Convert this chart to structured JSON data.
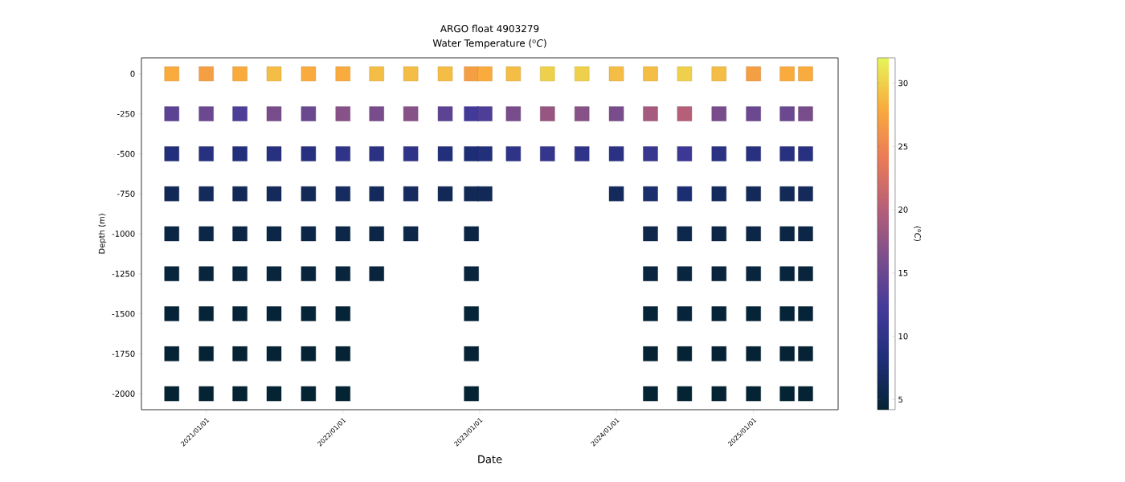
{
  "chart_data": {
    "type": "scatter",
    "title": "ARGO float 4903279",
    "subtitle": "Water Temperature ($^{o}$*C*)",
    "xlabel": "Date",
    "ylabel": "Depth (m)",
    "clabel": "($^{o}$*C*)",
    "xlim": [
      "2020-07-12",
      "2025-08-15"
    ],
    "xticks": [
      {
        "value": "2021-01-01",
        "label": "2021/01/01"
      },
      {
        "value": "2022-01-01",
        "label": "2022/01/01"
      },
      {
        "value": "2023-01-01",
        "label": "2023/01/01"
      },
      {
        "value": "2024-01-01",
        "label": "2024/01/01"
      },
      {
        "value": "2025-01-01",
        "label": "2025/01/01"
      }
    ],
    "ylim": [
      -2100,
      100
    ],
    "yticks": [
      0,
      -250,
      -500,
      -750,
      -1000,
      -1250,
      -1500,
      -1750,
      -2000
    ],
    "clim": [
      4.2,
      32
    ],
    "cticks": [
      5,
      10,
      15,
      20,
      25,
      30
    ],
    "marker": "square",
    "x": [
      "2020-10-01",
      "2020-10-01",
      "2020-10-01",
      "2020-10-01",
      "2020-10-01",
      "2020-10-01",
      "2020-10-01",
      "2020-10-01",
      "2020-10-01",
      "2021-01-01",
      "2021-01-01",
      "2021-01-01",
      "2021-01-01",
      "2021-01-01",
      "2021-01-01",
      "2021-01-01",
      "2021-01-01",
      "2021-01-01",
      "2021-04-01",
      "2021-04-01",
      "2021-04-01",
      "2021-04-01",
      "2021-04-01",
      "2021-04-01",
      "2021-04-01",
      "2021-04-01",
      "2021-04-01",
      "2021-07-01",
      "2021-07-01",
      "2021-07-01",
      "2021-07-01",
      "2021-07-01",
      "2021-07-01",
      "2021-07-01",
      "2021-07-01",
      "2021-07-01",
      "2021-10-01",
      "2021-10-01",
      "2021-10-01",
      "2021-10-01",
      "2021-10-01",
      "2021-10-01",
      "2021-10-01",
      "2021-10-01",
      "2021-10-01",
      "2022-01-01",
      "2022-01-01",
      "2022-01-01",
      "2022-01-01",
      "2022-01-01",
      "2022-01-01",
      "2022-01-01",
      "2022-01-01",
      "2022-01-01",
      "2022-04-01",
      "2022-04-01",
      "2022-04-01",
      "2022-04-01",
      "2022-04-01",
      "2022-04-01",
      "2022-07-01",
      "2022-07-01",
      "2022-07-01",
      "2022-07-01",
      "2022-07-01",
      "2022-10-01",
      "2022-10-01",
      "2022-10-01",
      "2022-10-01",
      "2022-12-10",
      "2022-12-10",
      "2022-12-10",
      "2022-12-10",
      "2022-12-10",
      "2022-12-10",
      "2022-12-10",
      "2022-12-10",
      "2022-12-10",
      "2023-01-15",
      "2023-01-15",
      "2023-01-15",
      "2023-01-15",
      "2023-04-01",
      "2023-04-01",
      "2023-04-01",
      "2023-07-01",
      "2023-07-01",
      "2023-07-01",
      "2023-10-01",
      "2023-10-01",
      "2023-10-01",
      "2024-01-01",
      "2024-01-01",
      "2024-01-01",
      "2024-01-01",
      "2024-04-01",
      "2024-04-01",
      "2024-04-01",
      "2024-04-01",
      "2024-04-01",
      "2024-04-01",
      "2024-04-01",
      "2024-04-01",
      "2024-04-01",
      "2024-07-01",
      "2024-07-01",
      "2024-07-01",
      "2024-07-01",
      "2024-07-01",
      "2024-07-01",
      "2024-07-01",
      "2024-07-01",
      "2024-07-01",
      "2024-10-01",
      "2024-10-01",
      "2024-10-01",
      "2024-10-01",
      "2024-10-01",
      "2024-10-01",
      "2024-10-01",
      "2024-10-01",
      "2024-10-01",
      "2025-01-01",
      "2025-01-01",
      "2025-01-01",
      "2025-01-01",
      "2025-01-01",
      "2025-01-01",
      "2025-01-01",
      "2025-01-01",
      "2025-01-01",
      "2025-04-01",
      "2025-04-01",
      "2025-04-01",
      "2025-04-01",
      "2025-04-01",
      "2025-04-01",
      "2025-04-01",
      "2025-04-01",
      "2025-04-01",
      "2025-05-20",
      "2025-05-20",
      "2025-05-20",
      "2025-05-20",
      "2025-05-20",
      "2025-05-20",
      "2025-05-20",
      "2025-05-20",
      "2025-05-20"
    ],
    "values": [
      0,
      -250,
      -500,
      -750,
      -1000,
      -1250,
      -1500,
      -1750,
      -2000,
      0,
      -250,
      -500,
      -750,
      -1000,
      -1250,
      -1500,
      -1750,
      -2000,
      0,
      -250,
      -500,
      -750,
      -1000,
      -1250,
      -1500,
      -1750,
      -2000,
      0,
      -250,
      -500,
      -750,
      -1000,
      -1250,
      -1500,
      -1750,
      -2000,
      0,
      -250,
      -500,
      -750,
      -1000,
      -1250,
      -1500,
      -1750,
      -2000,
      0,
      -250,
      -500,
      -750,
      -1000,
      -1250,
      -1500,
      -1750,
      -2000,
      0,
      -250,
      -500,
      -750,
      -1000,
      -1250,
      0,
      -250,
      -500,
      -750,
      -1000,
      0,
      -250,
      -500,
      -750,
      0,
      -250,
      -500,
      -750,
      -1000,
      -1250,
      -1500,
      -1750,
      -2000,
      0,
      -250,
      -500,
      -750,
      0,
      -250,
      -500,
      0,
      -250,
      -500,
      0,
      -250,
      -500,
      0,
      -250,
      -500,
      -750,
      0,
      -250,
      -500,
      -750,
      -1000,
      -1250,
      -1500,
      -1750,
      -2000,
      0,
      -250,
      -500,
      -750,
      -1000,
      -1250,
      -1500,
      -1750,
      -2000,
      0,
      -250,
      -500,
      -750,
      -1000,
      -1250,
      -1500,
      -1750,
      -2000,
      0,
      -250,
      -500,
      -750,
      -1000,
      -1250,
      -1500,
      -1750,
      -2000,
      0,
      -250,
      -500,
      -750,
      -1000,
      -1250,
      -1500,
      -1750,
      -2000,
      0,
      -250,
      -500,
      -750,
      -1000,
      -1250,
      -1500,
      -1750,
      -2000
    ],
    "cvalues": [
      28,
      14,
      8.5,
      6.3,
      5.2,
      4.8,
      4.5,
      4.3,
      4.2,
      27,
      15,
      9,
      6.5,
      5.3,
      4.8,
      4.5,
      4.3,
      4.2,
      28,
      13,
      8.5,
      6.3,
      5.2,
      4.7,
      4.5,
      4.3,
      4.2,
      29,
      16,
      9,
      6.5,
      5.3,
      4.8,
      4.5,
      4.3,
      4.2,
      28,
      15,
      9,
      6.4,
      5.3,
      4.8,
      4.5,
      4.3,
      4.2,
      28,
      17,
      10,
      6.8,
      5.4,
      4.8,
      4.5,
      4.3,
      4.2,
      29,
      16,
      9.5,
      6.6,
      5.3,
      4.8,
      29,
      17,
      10,
      6.8,
      5.4,
      29,
      14,
      8.5,
      6.3,
      27,
      12,
      8,
      6.2,
      5.2,
      4.8,
      4.5,
      4.3,
      4.2,
      28,
      13,
      8.5,
      6.3,
      29,
      16,
      10,
      30,
      18,
      10.5,
      30,
      17,
      10,
      29,
      16,
      9.5,
      6.6,
      29,
      19,
      11,
      7.5,
      5.6,
      4.9,
      4.5,
      4.3,
      4.2,
      30,
      20,
      11.5,
      7.8,
      5.7,
      4.9,
      4.6,
      4.3,
      4.2,
      29,
      16,
      9.5,
      6.6,
      5.3,
      4.8,
      4.5,
      4.3,
      4.2,
      27,
      15,
      9,
      6.4,
      5.3,
      4.8,
      4.5,
      4.3,
      4.2,
      28,
      15,
      9,
      6.4,
      5.2,
      4.7,
      4.5,
      4.3,
      4.2,
      28,
      16,
      9,
      6.5,
      5.3,
      4.8,
      4.5,
      4.3,
      4.2
    ]
  }
}
